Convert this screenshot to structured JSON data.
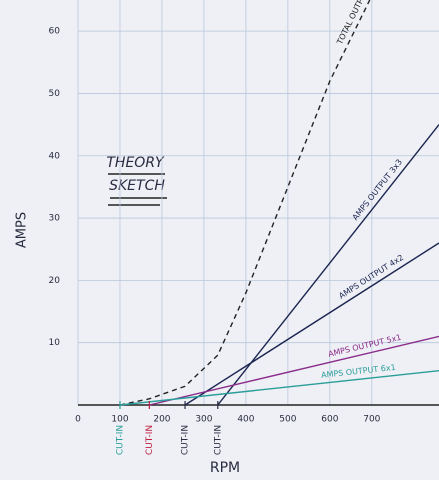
{
  "chart_data": {
    "type": "line",
    "title": [
      "THEORY",
      "SKETCH"
    ],
    "xlabel": "RPM",
    "ylabel": "AMPS",
    "xlim": [
      0,
      860
    ],
    "xticks": [
      0,
      100,
      200,
      300,
      400,
      500,
      600,
      700
    ],
    "ylim": [
      0,
      65
    ],
    "yticks": [
      10,
      20,
      30,
      40,
      50,
      60
    ],
    "grid": true,
    "series": [
      {
        "name": "TOTAL OUTPUT",
        "color": "#222222",
        "style": "dashed",
        "x": [
          100,
          170,
          255,
          333,
          400,
          500,
          600,
          695
        ],
        "values": [
          0,
          1,
          3,
          8,
          18,
          35,
          52,
          65
        ]
      },
      {
        "name": "AMPS OUTPUT 3x3",
        "color": "#1c2550",
        "style": "solid",
        "x": [
          333,
          860
        ],
        "values": [
          0,
          45
        ]
      },
      {
        "name": "AMPS OUTPUT 4x2",
        "color": "#1c2550",
        "style": "solid",
        "x": [
          255,
          860
        ],
        "values": [
          0,
          26
        ]
      },
      {
        "name": "AMPS OUTPUT 5x1",
        "color": "#8a2a8a",
        "style": "solid",
        "x": [
          170,
          860
        ],
        "values": [
          0,
          11
        ]
      },
      {
        "name": "AMPS OUTPUT 6x1",
        "color": "#2a9e9a",
        "style": "solid",
        "x": [
          100,
          860
        ],
        "values": [
          0,
          5.5
        ]
      }
    ],
    "annotations": [
      {
        "text": "CUT-IN",
        "x": 100,
        "color": "#2a9e9a"
      },
      {
        "text": "CUT-IN",
        "x": 170,
        "color": "#c02040"
      },
      {
        "text": "CUT-IN",
        "x": 255,
        "color": "#2a2a40"
      },
      {
        "text": "CUT-IN",
        "x": 333,
        "color": "#2a2a40"
      }
    ]
  }
}
